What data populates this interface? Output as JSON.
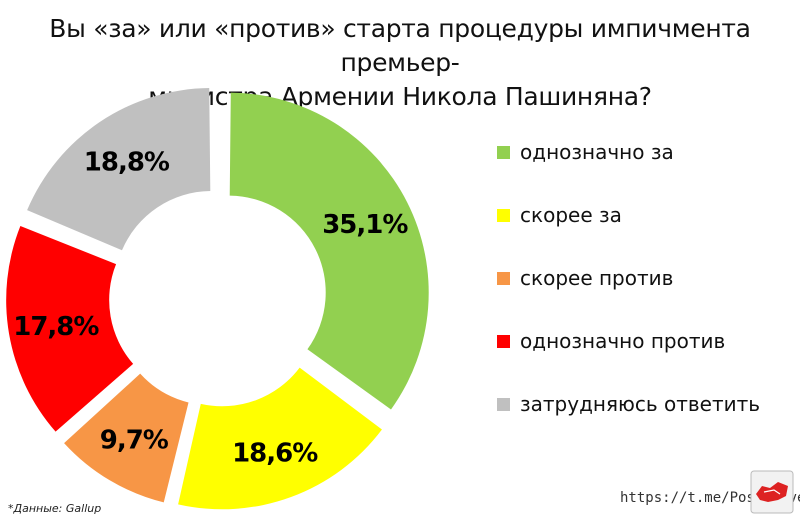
{
  "title_lines": [
    "Вы «за» или «против»  старта процедуры импичмента премьер-",
    "министра Армении Никола Пашиняна?"
  ],
  "chart_data": {
    "type": "pie",
    "style": "donut",
    "title": "Вы «за» или «против»  старта процедуры импичмента премьер-министра Армении Никола Пашиняна?",
    "slices": [
      {
        "name": "однозначно за",
        "value": 35.1,
        "label": "35,1%",
        "color": "#92d050"
      },
      {
        "name": "скорее за",
        "value": 18.6,
        "label": "18,6%",
        "color": "#ffff00"
      },
      {
        "name": "скорее против",
        "value": 9.7,
        "label": "9,7%",
        "color": "#f79646"
      },
      {
        "name": "однозначно против",
        "value": 17.8,
        "label": "17,8%",
        "color": "#ff0000"
      },
      {
        "name": "затрудняюсь ответить",
        "value": 18.8,
        "label": "18,8%",
        "color": "#c0c0c0"
      }
    ],
    "legend_position": "right"
  },
  "legend": [
    {
      "label": "однозначно за",
      "color": "#92d050"
    },
    {
      "label": "скорее за",
      "color": "#ffff00"
    },
    {
      "label": "скорее против",
      "color": "#f79646"
    },
    {
      "label": " однозначно против",
      "color": "#ff0000"
    },
    {
      "label": "затрудняюсь ответить",
      "color": "#c0c0c0"
    }
  ],
  "source_text": "*Данные: Gallup",
  "channel_text": "https://t.me/Post_Sovet",
  "logo_icon": "post-sovet-logo-icon"
}
